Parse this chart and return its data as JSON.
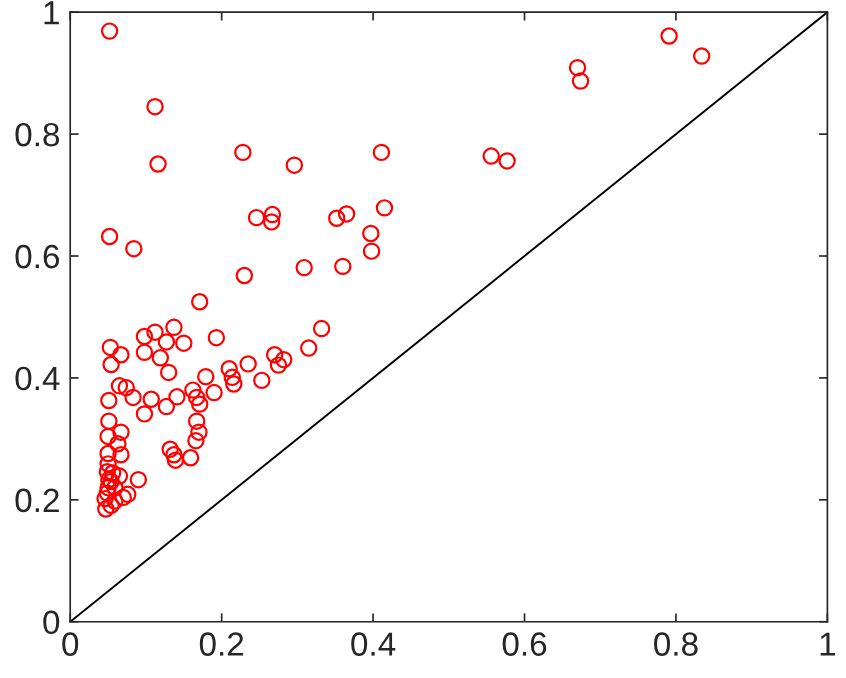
{
  "chart_data": {
    "type": "scatter",
    "xlim": [
      0,
      1
    ],
    "ylim": [
      0,
      1
    ],
    "xticks": [
      0,
      0.2,
      0.4,
      0.6,
      0.8,
      1
    ],
    "yticks": [
      0,
      0.2,
      0.4,
      0.6,
      0.8,
      1
    ],
    "grid": false,
    "legend": false,
    "series": [
      {
        "color": "#ff0000",
        "marker": "circle",
        "x": [
          0.052,
          0.112,
          0.116,
          0.228,
          0.296,
          0.411,
          0.415,
          0.246,
          0.267,
          0.266,
          0.352,
          0.365,
          0.397,
          0.398,
          0.052,
          0.084,
          0.23,
          0.309,
          0.36,
          0.171,
          0.791,
          0.834,
          0.67,
          0.674,
          0.556,
          0.577,
          0.332,
          0.315,
          0.282,
          0.275,
          0.27,
          0.235,
          0.253,
          0.21,
          0.214,
          0.216,
          0.193,
          0.179,
          0.19,
          0.171,
          0.162,
          0.167,
          0.167,
          0.17,
          0.166,
          0.159,
          0.137,
          0.15,
          0.127,
          0.112,
          0.098,
          0.098,
          0.119,
          0.13,
          0.141,
          0.127,
          0.107,
          0.098,
          0.083,
          0.074,
          0.065,
          0.053,
          0.067,
          0.054,
          0.051,
          0.051,
          0.05,
          0.067,
          0.063,
          0.067,
          0.05,
          0.05,
          0.132,
          0.139,
          0.137,
          0.049,
          0.056,
          0.065,
          0.051,
          0.05,
          0.059,
          0.049,
          0.09,
          0.076,
          0.07,
          0.059,
          0.047,
          0.054,
          0.046,
          0.054
        ],
        "values": [
          0.969,
          0.845,
          0.751,
          0.77,
          0.749,
          0.77,
          0.679,
          0.663,
          0.668,
          0.656,
          0.662,
          0.669,
          0.637,
          0.608,
          0.632,
          0.612,
          0.568,
          0.581,
          0.583,
          0.525,
          0.961,
          0.928,
          0.909,
          0.887,
          0.764,
          0.756,
          0.481,
          0.449,
          0.43,
          0.421,
          0.438,
          0.423,
          0.396,
          0.415,
          0.401,
          0.39,
          0.466,
          0.402,
          0.376,
          0.357,
          0.38,
          0.368,
          0.329,
          0.311,
          0.297,
          0.269,
          0.483,
          0.457,
          0.459,
          0.475,
          0.468,
          0.442,
          0.433,
          0.409,
          0.369,
          0.353,
          0.365,
          0.341,
          0.368,
          0.384,
          0.387,
          0.45,
          0.438,
          0.422,
          0.363,
          0.329,
          0.304,
          0.311,
          0.292,
          0.274,
          0.276,
          0.259,
          0.283,
          0.265,
          0.274,
          0.246,
          0.244,
          0.239,
          0.233,
          0.22,
          0.22,
          0.211,
          0.233,
          0.209,
          0.204,
          0.198,
          0.185,
          0.191,
          0.202,
          0.23
        ]
      },
      {
        "type": "line",
        "color": "#000000",
        "marker": "none",
        "line_style": "solid",
        "x": [
          0,
          1
        ],
        "values": [
          0,
          1
        ]
      }
    ]
  }
}
